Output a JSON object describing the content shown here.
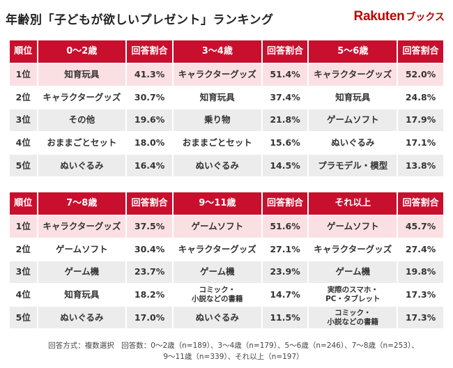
{
  "title": "年齢別「子どもが欲しいプレゼント」ランキング",
  "logo": {
    "brand": "Rakuten",
    "sub": "ブックス"
  },
  "colors": {
    "header": "#c8102e",
    "first_row": "#fbe0e3",
    "alt_row": "#ececec",
    "logo": "#bf0000"
  },
  "table1": {
    "headers": [
      "順位",
      "0〜2歳",
      "回答割合",
      "3〜4歳",
      "回答割合",
      "5〜6歳",
      "回答割合"
    ],
    "rows": [
      [
        "1位",
        "知育玩具",
        "41.3%",
        "キャラクターグッズ",
        "51.4%",
        "キャラクターグッズ",
        "52.0%"
      ],
      [
        "2位",
        "キャラクターグッズ",
        "30.7%",
        "知育玩具",
        "37.4%",
        "知育玩具",
        "24.8%"
      ],
      [
        "3位",
        "その他",
        "19.6%",
        "乗り物",
        "21.8%",
        "ゲームソフト",
        "17.9%"
      ],
      [
        "4位",
        "おままごとセット",
        "18.0%",
        "おままごとセット",
        "15.6%",
        "ぬいぐるみ",
        "17.1%"
      ],
      [
        "5位",
        "ぬいぐるみ",
        "16.4%",
        "ぬいぐるみ",
        "14.5%",
        "プラモデル・模型",
        "13.8%"
      ]
    ]
  },
  "table2": {
    "headers": [
      "順位",
      "7〜8歳",
      "回答割合",
      "9〜11歳",
      "回答割合",
      "それ以上",
      "回答割合"
    ],
    "rows": [
      [
        "1位",
        "キャラクターグッズ",
        "37.5%",
        "ゲームソフト",
        "51.6%",
        "ゲームソフト",
        "45.7%"
      ],
      [
        "2位",
        "ゲームソフト",
        "30.4%",
        "キャラクターグッズ",
        "27.1%",
        "キャラクターグッズ",
        "27.4%"
      ],
      [
        "3位",
        "ゲーム機",
        "23.7%",
        "ゲーム機",
        "23.9%",
        "ゲーム機",
        "19.8%"
      ],
      [
        "4位",
        "知育玩具",
        "18.2%",
        "コミック・\n小説などの書籍",
        "14.7%",
        "実際のスマホ・\nPC・タブレット",
        "17.3%"
      ],
      [
        "5位",
        "ぬいぐるみ",
        "17.0%",
        "ぬいぐるみ",
        "11.5%",
        "コミック・\n小説などの書籍",
        "17.3%"
      ]
    ]
  },
  "footnote": {
    "line1": "回答方式：複数選択　回答数：0〜2歳（n=189）、3〜4歳（n=179）、5〜6歳（n=246）、7〜8歳（n=253）、",
    "line2": "9〜11歳（n=339）、それ以上（n=197）"
  }
}
